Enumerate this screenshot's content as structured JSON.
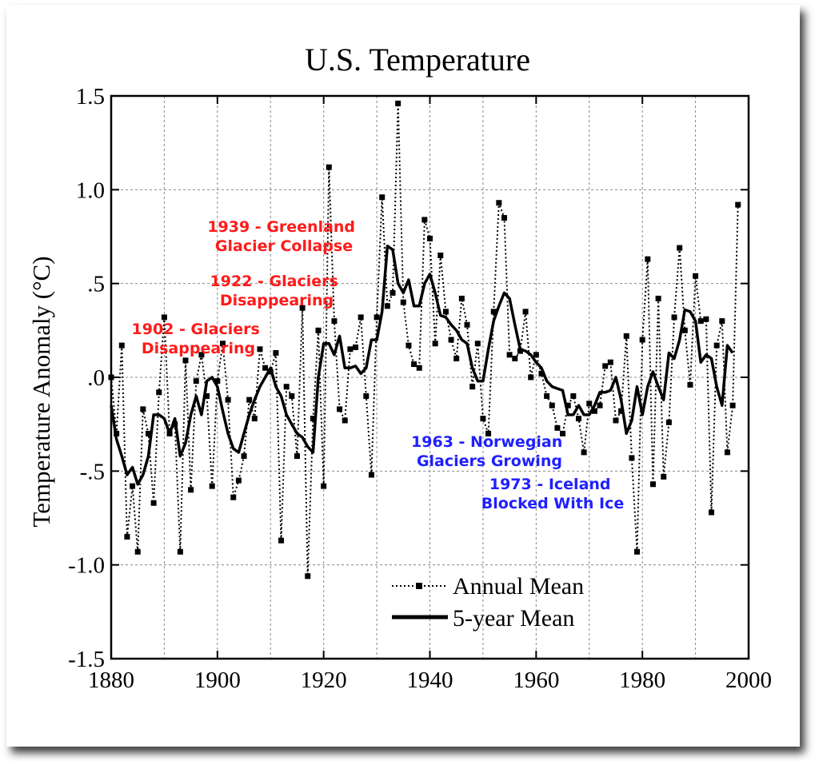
{
  "colors": {
    "annotation_warm": "#ff1a1a",
    "annotation_cool": "#1f1fff",
    "line": "#000000",
    "grid": "#888888"
  },
  "chart_data": {
    "type": "line",
    "title": "U.S. Temperature",
    "xlabel": "",
    "ylabel": "Temperature Anomaly (°C)",
    "xlim": [
      1880,
      2000
    ],
    "ylim": [
      -1.5,
      1.5
    ],
    "x_ticks": [
      1880,
      1900,
      1920,
      1940,
      1960,
      1980,
      2000
    ],
    "x_tick_labels": [
      "1880",
      "1900",
      "1920",
      "1940",
      "1960",
      "1980",
      "2000"
    ],
    "y_ticks": [
      1.5,
      1.0,
      0.5,
      0.0,
      -0.5,
      -1.0,
      -1.5
    ],
    "y_tick_labels": [
      "1.5",
      "1.0",
      ".5",
      ".0",
      "-.5",
      "-1.0",
      "-1.5"
    ],
    "grid": true,
    "legend_position": "bottom-right",
    "series": [
      {
        "name": "Annual Mean",
        "style": "dotted-square-markers",
        "x": [
          1880,
          1881,
          1882,
          1883,
          1884,
          1885,
          1886,
          1887,
          1888,
          1889,
          1890,
          1891,
          1892,
          1893,
          1894,
          1895,
          1896,
          1897,
          1898,
          1899,
          1900,
          1901,
          1902,
          1903,
          1904,
          1905,
          1906,
          1907,
          1908,
          1909,
          1910,
          1911,
          1912,
          1913,
          1914,
          1915,
          1916,
          1917,
          1918,
          1919,
          1920,
          1921,
          1922,
          1923,
          1924,
          1925,
          1926,
          1927,
          1928,
          1929,
          1930,
          1931,
          1932,
          1933,
          1934,
          1935,
          1936,
          1937,
          1938,
          1939,
          1940,
          1941,
          1942,
          1943,
          1944,
          1945,
          1946,
          1947,
          1948,
          1949,
          1950,
          1951,
          1952,
          1953,
          1954,
          1955,
          1956,
          1957,
          1958,
          1959,
          1960,
          1961,
          1962,
          1963,
          1964,
          1965,
          1966,
          1967,
          1968,
          1969,
          1970,
          1971,
          1972,
          1973,
          1974,
          1975,
          1976,
          1977,
          1978,
          1979,
          1980,
          1981,
          1982,
          1983,
          1984,
          1985,
          1986,
          1987,
          1988,
          1989,
          1990,
          1991,
          1992,
          1993,
          1994,
          1995,
          1996,
          1997,
          1998
        ],
        "values": [
          0.0,
          -0.3,
          0.17,
          -0.85,
          -0.58,
          -0.93,
          -0.17,
          -0.3,
          -0.67,
          -0.08,
          0.32,
          -0.3,
          -0.25,
          -0.93,
          0.09,
          -0.6,
          -0.02,
          0.12,
          -0.1,
          -0.58,
          -0.02,
          0.18,
          -0.12,
          -0.64,
          -0.55,
          -0.42,
          -0.12,
          -0.22,
          0.15,
          0.05,
          0.03,
          0.13,
          -0.87,
          -0.05,
          -0.1,
          -0.42,
          0.37,
          -1.06,
          -0.22,
          0.25,
          -0.58,
          1.12,
          0.3,
          -0.17,
          -0.23,
          0.15,
          0.16,
          0.32,
          -0.1,
          -0.52,
          0.32,
          0.96,
          0.38,
          0.45,
          1.46,
          0.4,
          0.17,
          0.07,
          0.05,
          0.84,
          0.74,
          0.18,
          0.65,
          0.35,
          0.2,
          0.1,
          0.42,
          0.28,
          -0.05,
          0.18,
          -0.22,
          -0.3,
          0.35,
          0.93,
          0.85,
          0.12,
          0.1,
          0.14,
          0.35,
          0.0,
          0.12,
          0.02,
          -0.1,
          -0.15,
          -0.27,
          -0.3,
          -0.15,
          -0.1,
          -0.22,
          -0.4,
          -0.14,
          -0.18,
          -0.15,
          0.06,
          0.08,
          -0.23,
          -0.18,
          0.22,
          -0.43,
          -0.93,
          0.2,
          0.63,
          -0.57,
          0.42,
          -0.53,
          -0.24,
          0.32,
          0.69,
          0.25,
          -0.04,
          0.54,
          0.3,
          0.31,
          -0.72,
          0.17,
          0.3,
          -0.4,
          -0.15,
          0.92
        ]
      },
      {
        "name": "5-year Mean",
        "style": "solid-thick",
        "x": [
          1880,
          1881,
          1882,
          1883,
          1884,
          1885,
          1886,
          1887,
          1888,
          1889,
          1890,
          1891,
          1892,
          1893,
          1894,
          1895,
          1896,
          1897,
          1898,
          1899,
          1900,
          1901,
          1902,
          1903,
          1904,
          1905,
          1906,
          1907,
          1908,
          1909,
          1910,
          1911,
          1912,
          1913,
          1914,
          1915,
          1916,
          1917,
          1918,
          1919,
          1920,
          1921,
          1922,
          1923,
          1924,
          1925,
          1926,
          1927,
          1928,
          1929,
          1930,
          1931,
          1932,
          1933,
          1934,
          1935,
          1936,
          1937,
          1938,
          1939,
          1940,
          1941,
          1942,
          1943,
          1944,
          1945,
          1946,
          1947,
          1948,
          1949,
          1950,
          1951,
          1952,
          1953,
          1954,
          1955,
          1956,
          1957,
          1958,
          1959,
          1960,
          1961,
          1962,
          1963,
          1964,
          1965,
          1966,
          1967,
          1968,
          1969,
          1970,
          1971,
          1972,
          1973,
          1974,
          1975,
          1976,
          1977,
          1978,
          1979,
          1980,
          1981,
          1982,
          1983,
          1984,
          1985,
          1986,
          1987,
          1988,
          1989,
          1990,
          1991,
          1992,
          1993,
          1994,
          1995,
          1996,
          1997
        ],
        "values": [
          -0.15,
          -0.33,
          -0.42,
          -0.52,
          -0.48,
          -0.57,
          -0.52,
          -0.42,
          -0.2,
          -0.2,
          -0.22,
          -0.3,
          -0.22,
          -0.42,
          -0.35,
          -0.2,
          -0.1,
          -0.2,
          -0.02,
          0.0,
          -0.05,
          -0.18,
          -0.3,
          -0.38,
          -0.4,
          -0.3,
          -0.2,
          -0.12,
          -0.05,
          0.0,
          0.05,
          -0.05,
          -0.1,
          -0.2,
          -0.25,
          -0.3,
          -0.32,
          -0.37,
          -0.4,
          0.0,
          0.18,
          0.18,
          0.12,
          0.22,
          0.05,
          0.05,
          0.06,
          0.02,
          0.05,
          0.2,
          0.2,
          0.35,
          0.7,
          0.68,
          0.5,
          0.45,
          0.52,
          0.38,
          0.38,
          0.5,
          0.55,
          0.45,
          0.33,
          0.32,
          0.28,
          0.25,
          0.2,
          0.18,
          0.05,
          -0.02,
          -0.02,
          0.15,
          0.3,
          0.38,
          0.45,
          0.42,
          0.28,
          0.15,
          0.14,
          0.12,
          0.08,
          0.05,
          -0.02,
          -0.05,
          -0.06,
          -0.07,
          -0.2,
          -0.2,
          -0.15,
          -0.2,
          -0.2,
          -0.15,
          -0.08,
          -0.08,
          -0.07,
          0.0,
          -0.12,
          -0.3,
          -0.23,
          -0.05,
          -0.2,
          -0.05,
          0.03,
          -0.05,
          -0.12,
          0.13,
          0.1,
          0.2,
          0.36,
          0.35,
          0.3,
          0.08,
          0.12,
          0.1,
          -0.05,
          -0.15,
          0.17,
          0.13
        ]
      }
    ],
    "legend": [
      {
        "label": "Annual Mean",
        "style": "dotted-square-markers"
      },
      {
        "label": "5-year Mean",
        "style": "solid-thick"
      }
    ],
    "annotations": [
      {
        "lines": [
          "1939 - Greenland",
          "Glacier Collapse"
        ],
        "color": "red"
      },
      {
        "lines": [
          "1922 - Glaciers",
          "Disappearing"
        ],
        "color": "red"
      },
      {
        "lines": [
          "1902 - Glaciers",
          "Disappearing"
        ],
        "color": "red"
      },
      {
        "lines": [
          "1963 - Norwegian",
          "Glaciers Growing"
        ],
        "color": "blue"
      },
      {
        "lines": [
          "1973 - Iceland",
          "Blocked With Ice"
        ],
        "color": "blue"
      }
    ]
  }
}
